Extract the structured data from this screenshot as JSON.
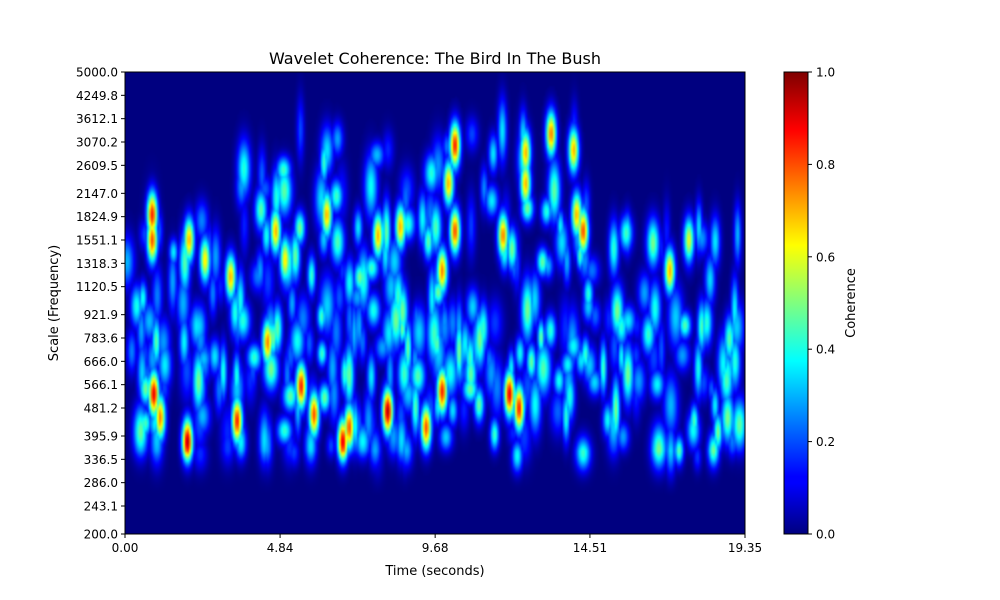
{
  "chart_data": {
    "type": "heatmap",
    "title": "Wavelet Coherence: The Bird In The Bush",
    "xlabel": "Time (seconds)",
    "ylabel": "Scale (Frequency)",
    "xlim": [
      0.0,
      19.35
    ],
    "ylim": [
      200.0,
      5000.0
    ],
    "yscale": "log",
    "x_ticks": [
      "0.00",
      "4.84",
      "9.68",
      "14.51",
      "19.35"
    ],
    "y_ticks": [
      "5000.0",
      "4249.8",
      "3612.1",
      "3070.2",
      "2609.5",
      "2147.0",
      "1824.9",
      "1551.1",
      "1318.3",
      "1120.5",
      "921.9",
      "783.6",
      "666.0",
      "566.1",
      "481.2",
      "395.9",
      "336.5",
      "286.0",
      "243.1",
      "200.0"
    ],
    "colorbar": {
      "label": "Coherence",
      "range": [
        0.0,
        1.0
      ],
      "ticks": [
        "0.0",
        "0.2",
        "0.4",
        "0.6",
        "0.8",
        "1.0"
      ],
      "colormap": "jet"
    },
    "hotspots": [
      {
        "t": 0.85,
        "scale": 1850,
        "coherence": 0.85
      },
      {
        "t": 0.85,
        "scale": 1551,
        "coherence": 0.8
      },
      {
        "t": 0.9,
        "scale": 530,
        "coherence": 0.9
      },
      {
        "t": 1.1,
        "scale": 450,
        "coherence": 0.75
      },
      {
        "t": 1.95,
        "scale": 380,
        "coherence": 0.95
      },
      {
        "t": 2.0,
        "scale": 1550,
        "coherence": 0.7
      },
      {
        "t": 2.5,
        "scale": 1350,
        "coherence": 0.65
      },
      {
        "t": 3.3,
        "scale": 1200,
        "coherence": 0.7
      },
      {
        "t": 3.5,
        "scale": 440,
        "coherence": 0.85
      },
      {
        "t": 4.45,
        "scale": 760,
        "coherence": 0.75
      },
      {
        "t": 4.7,
        "scale": 1650,
        "coherence": 0.7
      },
      {
        "t": 5.0,
        "scale": 1350,
        "coherence": 0.65
      },
      {
        "t": 5.5,
        "scale": 560,
        "coherence": 0.85
      },
      {
        "t": 5.9,
        "scale": 460,
        "coherence": 0.8
      },
      {
        "t": 6.3,
        "scale": 1850,
        "coherence": 0.7
      },
      {
        "t": 6.8,
        "scale": 380,
        "coherence": 0.9
      },
      {
        "t": 7.0,
        "scale": 420,
        "coherence": 0.8
      },
      {
        "t": 7.9,
        "scale": 1600,
        "coherence": 0.7
      },
      {
        "t": 8.2,
        "scale": 470,
        "coherence": 0.95
      },
      {
        "t": 8.6,
        "scale": 1700,
        "coherence": 0.7
      },
      {
        "t": 9.4,
        "scale": 420,
        "coherence": 0.8
      },
      {
        "t": 9.9,
        "scale": 540,
        "coherence": 0.85
      },
      {
        "t": 9.9,
        "scale": 1250,
        "coherence": 0.75
      },
      {
        "t": 10.3,
        "scale": 3000,
        "coherence": 0.85
      },
      {
        "t": 10.3,
        "scale": 1650,
        "coherence": 0.8
      },
      {
        "t": 10.1,
        "scale": 2300,
        "coherence": 0.7
      },
      {
        "t": 11.8,
        "scale": 1600,
        "coherence": 0.75
      },
      {
        "t": 12.0,
        "scale": 530,
        "coherence": 0.9
      },
      {
        "t": 12.3,
        "scale": 480,
        "coherence": 0.85
      },
      {
        "t": 12.5,
        "scale": 2850,
        "coherence": 0.7
      },
      {
        "t": 12.5,
        "scale": 2300,
        "coherence": 0.7
      },
      {
        "t": 13.3,
        "scale": 3250,
        "coherence": 0.75
      },
      {
        "t": 14.0,
        "scale": 2900,
        "coherence": 0.7
      },
      {
        "t": 14.3,
        "scale": 1650,
        "coherence": 0.8
      },
      {
        "t": 14.1,
        "scale": 1850,
        "coherence": 0.7
      },
      {
        "t": 17.0,
        "scale": 1250,
        "coherence": 0.7
      },
      {
        "t": 17.6,
        "scale": 1550,
        "coherence": 0.6
      }
    ]
  }
}
